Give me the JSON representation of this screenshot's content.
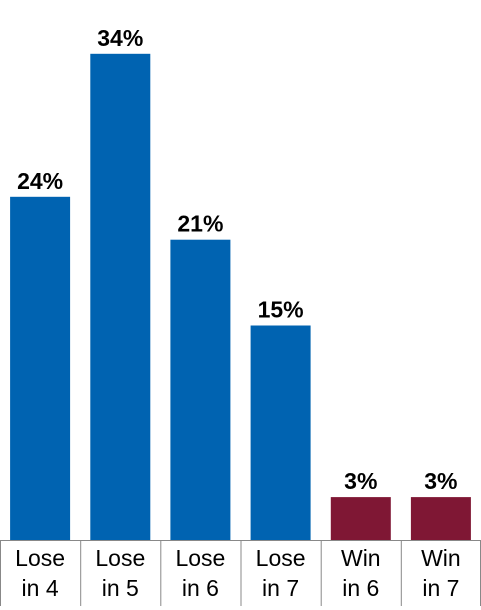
{
  "chart_data": {
    "type": "bar",
    "categories": [
      [
        "Lose",
        "in 4"
      ],
      [
        "Lose",
        "in 5"
      ],
      [
        "Lose",
        "in 6"
      ],
      [
        "Lose",
        "in 7"
      ],
      [
        "Win",
        "in 6"
      ],
      [
        "Win",
        "in 7"
      ]
    ],
    "values": [
      24,
      34,
      21,
      15,
      3,
      3
    ],
    "data_labels": [
      "24%",
      "34%",
      "21%",
      "15%",
      "3%",
      "3%"
    ],
    "bar_colors": [
      "#0063b1",
      "#0063b1",
      "#0063b1",
      "#0063b1",
      "#7f1734",
      "#7f1734"
    ],
    "ylim": [
      0,
      38
    ],
    "grid": false,
    "legend": "none",
    "title": "",
    "xlabel": "",
    "ylabel": ""
  }
}
